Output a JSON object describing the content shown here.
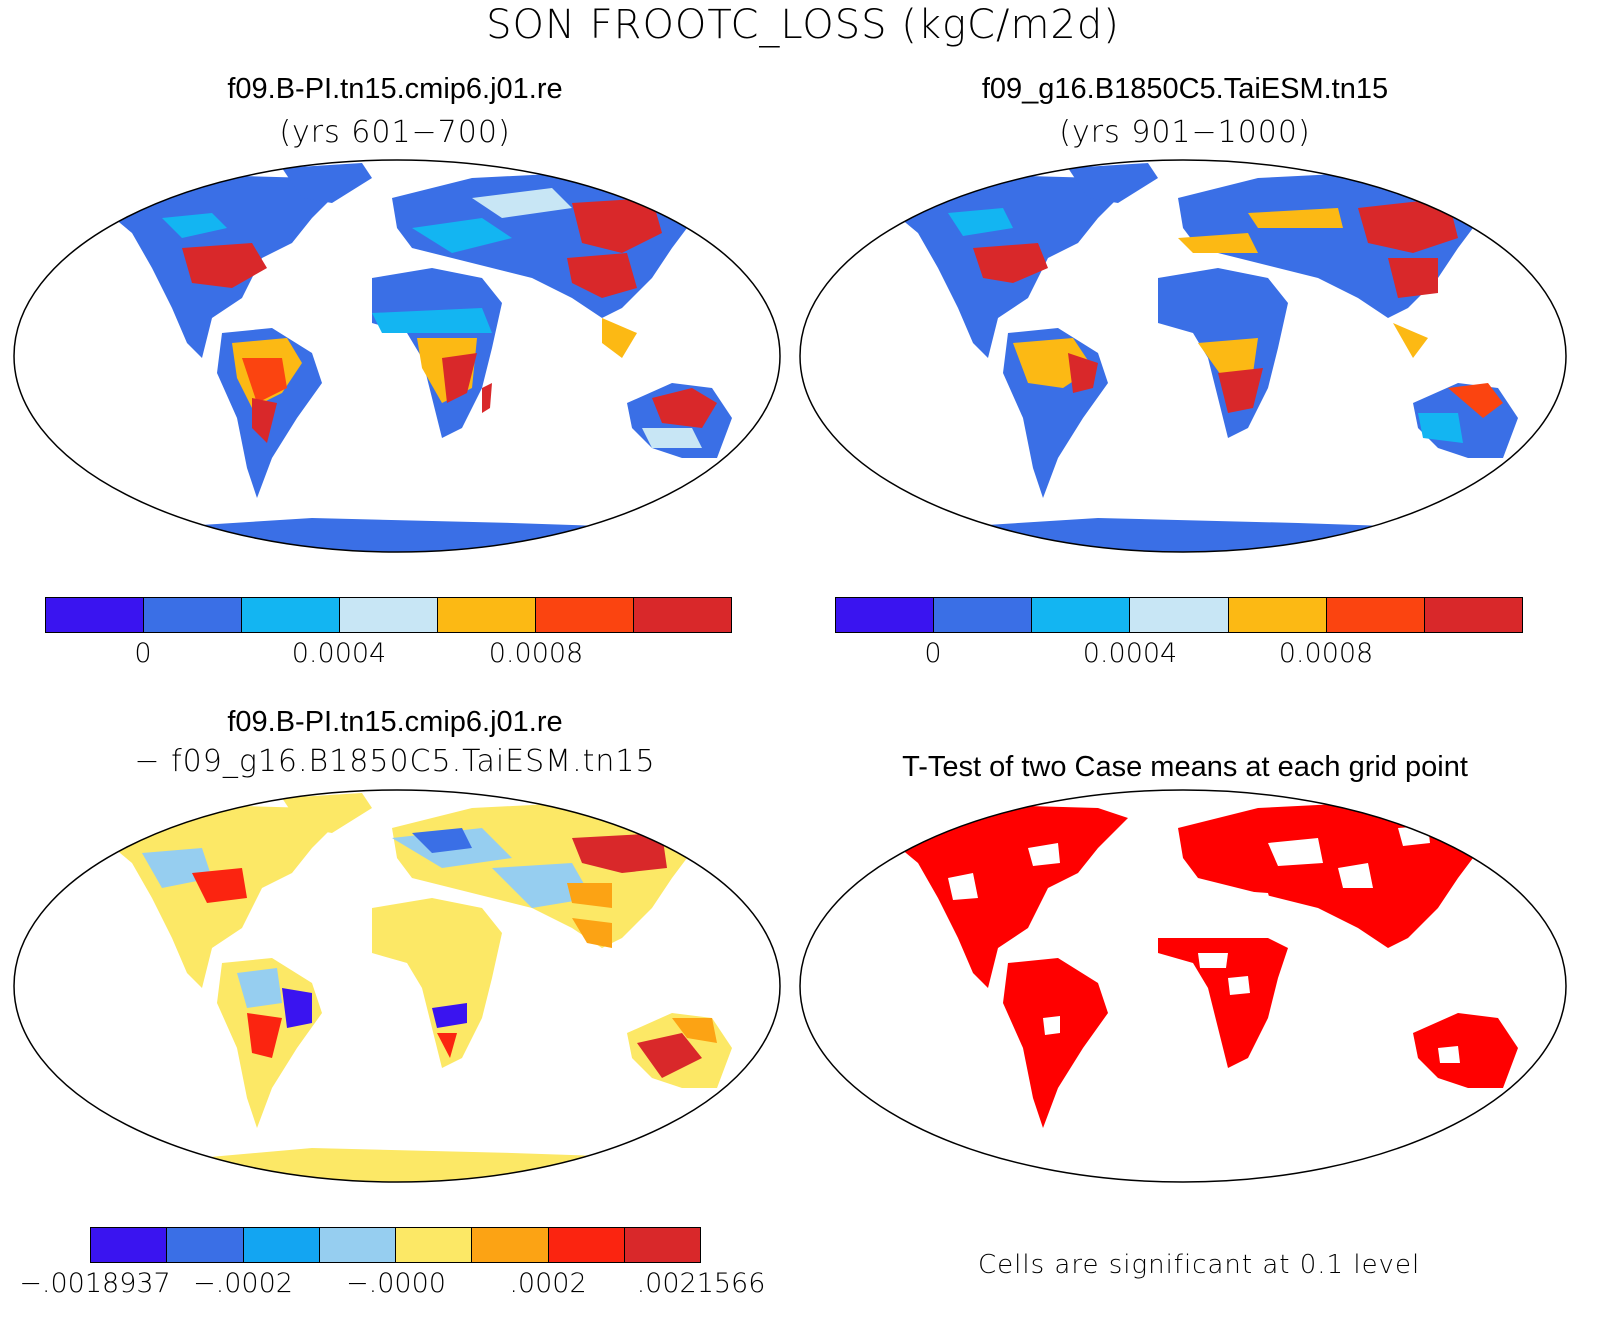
{
  "title": "SON FROOTC_LOSS (kgC/m2d)",
  "panels": {
    "case1": {
      "title": "f09.B-PI.tn15.cmip6.j01.re",
      "subtitle": "(yrs 601−700)"
    },
    "case2": {
      "title": "f09_g16.B1850C5.TaiESM.tn15",
      "subtitle": "(yrs 901−1000)"
    },
    "diff": {
      "title": "f09.B-PI.tn15.cmip6.j01.re",
      "subtitle": "− f09_g16.B1850C5.TaiESM.tn15"
    },
    "ttest": {
      "title": "T-Test of two Case means at each grid point",
      "note": "Cells are significant at 0.1 level"
    }
  },
  "colorbar_cases": {
    "colors": [
      "#3a14f0",
      "#3a6fe6",
      "#13b5f2",
      "#c8e6f5",
      "#fcb914",
      "#fb4410",
      "#d9282a"
    ],
    "labels": [
      "0",
      "0.0004",
      "0.0008"
    ]
  },
  "colorbar_diff": {
    "colors": [
      "#3a14f0",
      "#3a6fe6",
      "#13a5f2",
      "#96cef0",
      "#fce866",
      "#fca314",
      "#fb2410",
      "#d9282a"
    ],
    "labels": [
      "−.0018937",
      "−.0002",
      "−.0000",
      ".0002",
      ".0021566"
    ]
  },
  "colors": {
    "land_base_case": "#3a6fe6",
    "land_base_diff": "#fce866",
    "significant": "#ff0000"
  }
}
